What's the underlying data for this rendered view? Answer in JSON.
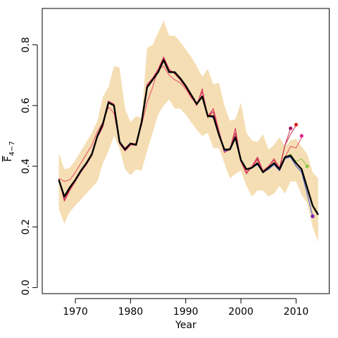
{
  "chart_data": {
    "type": "line",
    "title": "",
    "xlabel": "Year",
    "ylabel": {
      "main": "F",
      "sub": "4−7"
    },
    "xlim": [
      1964,
      2016
    ],
    "ylim": [
      -0.02,
      0.92
    ],
    "xticks": [
      1970,
      1980,
      1990,
      2000,
      2010
    ],
    "yticks": [
      0.0,
      0.2,
      0.4,
      0.6,
      0.8
    ],
    "xtick_labels": [
      "1970",
      "1980",
      "1990",
      "2000",
      "2010"
    ],
    "ytick_labels": [
      "0.0",
      "0.2",
      "0.4",
      "0.6",
      "0.8"
    ],
    "band": {
      "color": "#f5deb3",
      "x": [
        1967,
        1968,
        1969,
        1970,
        1971,
        1972,
        1973,
        1974,
        1975,
        1976,
        1977,
        1978,
        1979,
        1980,
        1981,
        1982,
        1983,
        1984,
        1985,
        1986,
        1987,
        1988,
        1989,
        1990,
        1991,
        1992,
        1993,
        1994,
        1995,
        1996,
        1997,
        1998,
        1999,
        2000,
        2001,
        2002,
        2003,
        2004,
        2005,
        2006,
        2007,
        2008,
        2009,
        2010,
        2011,
        2012,
        2013,
        2014
      ],
      "lower": [
        0.26,
        0.21,
        0.25,
        0.27,
        0.29,
        0.31,
        0.33,
        0.35,
        0.41,
        0.45,
        0.5,
        0.46,
        0.39,
        0.37,
        0.39,
        0.385,
        0.45,
        0.51,
        0.57,
        0.6,
        0.62,
        0.59,
        0.59,
        0.57,
        0.545,
        0.52,
        0.5,
        0.51,
        0.46,
        0.46,
        0.41,
        0.36,
        0.375,
        0.385,
        0.335,
        0.3,
        0.32,
        0.32,
        0.3,
        0.31,
        0.335,
        0.31,
        0.35,
        0.35,
        0.305,
        0.28,
        0.2,
        0.15
      ],
      "upper": [
        0.445,
        0.39,
        0.395,
        0.42,
        0.45,
        0.48,
        0.51,
        0.55,
        0.63,
        0.66,
        0.73,
        0.725,
        0.59,
        0.545,
        0.565,
        0.56,
        0.79,
        0.8,
        0.84,
        0.88,
        0.83,
        0.83,
        0.81,
        0.785,
        0.76,
        0.73,
        0.695,
        0.72,
        0.67,
        0.675,
        0.6,
        0.55,
        0.555,
        0.61,
        0.51,
        0.485,
        0.48,
        0.505,
        0.455,
        0.47,
        0.495,
        0.465,
        0.485,
        0.49,
        0.465,
        0.44,
        0.38,
        0.36
      ]
    },
    "series": [
      {
        "color": "#000000",
        "width": 2.4,
        "x": [
          1967,
          1968,
          1969,
          1970,
          1971,
          1972,
          1973,
          1974,
          1975,
          1976,
          1977,
          1978,
          1979,
          1980,
          1981,
          1982,
          1983,
          1984,
          1985,
          1986,
          1987,
          1988,
          1989,
          1990,
          1991,
          1992,
          1993,
          1994,
          1995,
          1996,
          1997,
          1998,
          1999,
          2000,
          2001,
          2002,
          2003,
          2004,
          2005,
          2006,
          2007,
          2008,
          2009,
          2010,
          2011,
          2012,
          2013,
          2014
        ],
        "y": [
          0.355,
          0.3,
          0.33,
          0.355,
          0.385,
          0.41,
          0.44,
          0.5,
          0.54,
          0.61,
          0.6,
          0.48,
          0.455,
          0.475,
          0.47,
          0.545,
          0.66,
          0.685,
          0.71,
          0.75,
          0.71,
          0.71,
          0.69,
          0.665,
          0.635,
          0.605,
          0.63,
          0.565,
          0.565,
          0.505,
          0.455,
          0.455,
          0.495,
          0.42,
          0.39,
          0.395,
          0.41,
          0.38,
          0.395,
          0.41,
          0.39,
          0.43,
          0.435,
          0.41,
          0.39,
          0.33,
          0.27,
          0.24
        ]
      },
      {
        "color": "#d4245c",
        "width": 1,
        "x": [
          1967,
          1968,
          1969,
          1970,
          1971,
          1972,
          1973,
          1974,
          1975,
          1976,
          1977,
          1978,
          1979,
          1980,
          1981,
          1982,
          1983,
          1984,
          1985,
          1986,
          1987,
          1988,
          1989,
          1990,
          1991,
          1992,
          1993,
          1994,
          1995,
          1996,
          1997,
          1998,
          1999,
          2000,
          2001,
          2002,
          2003,
          2004,
          2005,
          2006,
          2007,
          2008,
          2009
        ],
        "y": [
          0.36,
          0.285,
          0.32,
          0.35,
          0.38,
          0.405,
          0.435,
          0.495,
          0.53,
          0.615,
          0.605,
          0.475,
          0.45,
          0.47,
          0.47,
          0.55,
          0.67,
          0.69,
          0.72,
          0.76,
          0.72,
          0.705,
          0.685,
          0.66,
          0.63,
          0.6,
          0.655,
          0.56,
          0.59,
          0.51,
          0.445,
          0.455,
          0.525,
          0.415,
          0.375,
          0.4,
          0.43,
          0.385,
          0.4,
          0.425,
          0.395,
          0.47,
          0.525
        ]
      },
      {
        "color": "#c1233e",
        "width": 1,
        "x": [
          1967,
          1968,
          1969,
          1970,
          1971,
          1972,
          1973,
          1974,
          1975,
          1976,
          1977,
          1978,
          1979,
          1980,
          1981,
          1982,
          1983,
          1984,
          1985,
          1986,
          1987,
          1988,
          1989,
          1990,
          1991,
          1992,
          1993,
          1994,
          1995,
          1996,
          1997,
          1998,
          1999,
          2000,
          2001,
          2002,
          2003,
          2004,
          2005,
          2006,
          2007,
          2008,
          2009,
          2010
        ],
        "y": [
          0.36,
          0.29,
          0.325,
          0.355,
          0.385,
          0.41,
          0.44,
          0.5,
          0.535,
          0.61,
          0.6,
          0.48,
          0.455,
          0.475,
          0.47,
          0.545,
          0.665,
          0.685,
          0.715,
          0.755,
          0.715,
          0.705,
          0.685,
          0.66,
          0.63,
          0.605,
          0.645,
          0.56,
          0.58,
          0.505,
          0.45,
          0.455,
          0.51,
          0.42,
          0.38,
          0.395,
          0.425,
          0.385,
          0.4,
          0.42,
          0.39,
          0.47,
          0.505,
          0.535
        ]
      },
      {
        "color": "#e84a66",
        "width": 1,
        "x": [
          1967,
          1968,
          1969,
          1970,
          1971,
          1972,
          1973,
          1974,
          1975,
          1976,
          1977,
          1978,
          1979,
          1980,
          1981,
          1982,
          1983,
          1984,
          1985,
          1986,
          1987,
          1988,
          1989,
          1990,
          1991,
          1992,
          1993,
          1994,
          1995,
          1996,
          1997,
          1998,
          1999,
          2000,
          2001,
          2002,
          2003,
          2004,
          2005,
          2006,
          2007,
          2008,
          2009,
          2010,
          2011
        ],
        "y": [
          0.36,
          0.35,
          0.355,
          0.38,
          0.41,
          0.44,
          0.47,
          0.515,
          0.545,
          0.595,
          0.575,
          0.48,
          0.46,
          0.475,
          0.475,
          0.535,
          0.61,
          0.66,
          0.72,
          0.73,
          0.7,
          0.685,
          0.675,
          0.655,
          0.625,
          0.605,
          0.645,
          0.565,
          0.59,
          0.52,
          0.45,
          0.46,
          0.5,
          0.42,
          0.38,
          0.4,
          0.42,
          0.385,
          0.4,
          0.425,
          0.395,
          0.43,
          0.465,
          0.46,
          0.495
        ]
      },
      {
        "color": "#3050d0",
        "width": 1,
        "x": [
          1967,
          1968,
          1969,
          1970,
          1971,
          1972,
          1973,
          1974,
          1975,
          1976,
          1977,
          1978,
          1979,
          1980,
          1981,
          1982,
          1983,
          1984,
          1985,
          1986,
          1987,
          1988,
          1989,
          1990,
          1991,
          1992,
          1993,
          1994,
          1995,
          1996,
          1997,
          1998,
          1999,
          2000,
          2001,
          2002,
          2003,
          2004,
          2005,
          2006,
          2007,
          2008,
          2009,
          2010,
          2011,
          2012,
          2013
        ],
        "y": [
          0.355,
          0.3,
          0.33,
          0.355,
          0.385,
          0.41,
          0.44,
          0.5,
          0.54,
          0.61,
          0.6,
          0.48,
          0.455,
          0.475,
          0.47,
          0.545,
          0.66,
          0.685,
          0.71,
          0.75,
          0.71,
          0.71,
          0.69,
          0.665,
          0.635,
          0.605,
          0.63,
          0.565,
          0.56,
          0.5,
          0.45,
          0.455,
          0.49,
          0.42,
          0.39,
          0.395,
          0.405,
          0.38,
          0.39,
          0.405,
          0.385,
          0.425,
          0.43,
          0.4,
          0.38,
          0.31,
          0.235
        ]
      },
      {
        "color": "#8cc63f",
        "width": 1,
        "x": [
          2008,
          2009,
          2010,
          2011,
          2012
        ],
        "y": [
          0.43,
          0.44,
          0.415,
          0.425,
          0.4
        ]
      }
    ],
    "endpoints": [
      {
        "x": 2009,
        "y": 0.525,
        "color": "#a0145a"
      },
      {
        "x": 2010,
        "y": 0.537,
        "color": "#e0201c"
      },
      {
        "x": 2011,
        "y": 0.5,
        "color": "#e0208a"
      },
      {
        "x": 2012,
        "y": 0.4,
        "color": "#8cc63f"
      },
      {
        "x": 2013,
        "y": 0.235,
        "color": "#7a1fb0"
      }
    ]
  }
}
